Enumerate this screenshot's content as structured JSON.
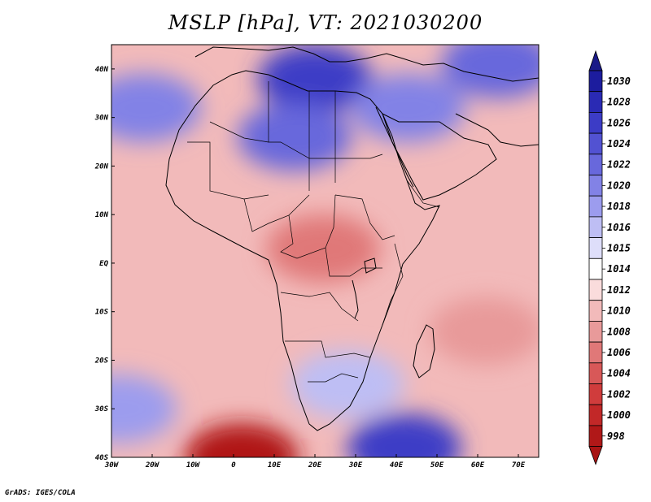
{
  "map": {
    "title": "MSLP [hPa], VT: 2021030200",
    "variable": "MSLP",
    "units": "hPa",
    "valid_time": "2021030200",
    "region": "Africa",
    "lon_range": [
      -30,
      75
    ],
    "lat_range": [
      -40,
      45
    ],
    "lon_ticks": [
      {
        "value": -30,
        "label": "30W"
      },
      {
        "value": -20,
        "label": "20W"
      },
      {
        "value": -10,
        "label": "10W"
      },
      {
        "value": 0,
        "label": "0"
      },
      {
        "value": 10,
        "label": "10E"
      },
      {
        "value": 20,
        "label": "20E"
      },
      {
        "value": 30,
        "label": "30E"
      },
      {
        "value": 40,
        "label": "40E"
      },
      {
        "value": 50,
        "label": "50E"
      },
      {
        "value": 60,
        "label": "60E"
      },
      {
        "value": 70,
        "label": "70E"
      }
    ],
    "lat_ticks": [
      {
        "value": 40,
        "label": "40N"
      },
      {
        "value": 30,
        "label": "30N"
      },
      {
        "value": 20,
        "label": "20N"
      },
      {
        "value": 10,
        "label": "10N"
      },
      {
        "value": 0,
        "label": "EQ"
      },
      {
        "value": -10,
        "label": "10S"
      },
      {
        "value": -20,
        "label": "20S"
      },
      {
        "value": -30,
        "label": "30S"
      },
      {
        "value": -40,
        "label": "40S"
      }
    ],
    "pressure_features": [
      {
        "name": "north-africa-high",
        "lon": 20,
        "lat": 38,
        "value": 1027
      },
      {
        "name": "mid-atlantic-high",
        "lon": -22,
        "lat": 32,
        "value": 1020
      },
      {
        "name": "sahara-high",
        "lon": 15,
        "lat": 26,
        "value": 1022
      },
      {
        "name": "arabia-high",
        "lon": 43,
        "lat": 32,
        "value": 1021
      },
      {
        "name": "asia-high",
        "lon": 65,
        "lat": 41,
        "value": 1023
      },
      {
        "name": "central-africa-low",
        "lon": 22,
        "lat": 3,
        "value": 1007
      },
      {
        "name": "indian-ocean-low",
        "lon": 62,
        "lat": -14,
        "value": 1008
      },
      {
        "name": "south-atlantic-low",
        "lon": 2,
        "lat": -40,
        "value": 998
      },
      {
        "name": "southern-indian-high",
        "lon": 42,
        "lat": -38,
        "value": 1027
      },
      {
        "name": "south-africa-high",
        "lon": 28,
        "lat": -25,
        "value": 1017
      },
      {
        "name": "south-atlantic-high",
        "lon": -28,
        "lat": -30,
        "value": 1018
      }
    ]
  },
  "colorbar": {
    "levels": [
      "1030",
      "1028",
      "1026",
      "1024",
      "1022",
      "1020",
      "1018",
      "1016",
      "1015",
      "1014",
      "1012",
      "1010",
      "1008",
      "1006",
      "1004",
      "1002",
      "1000",
      "998"
    ],
    "colors": [
      "#1c1c9e",
      "#2a2ab4",
      "#3c3cc6",
      "#5252d2",
      "#6868dc",
      "#8282e6",
      "#9c9cee",
      "#bebef4",
      "#dedefa",
      "#ffffff",
      "#fadcdc",
      "#f2baba",
      "#e89a9a",
      "#e07878",
      "#d85858",
      "#d03c3c",
      "#c22828",
      "#b01818"
    ],
    "top_color": "#1a1a88",
    "bottom_color": "#a81414"
  },
  "footer": {
    "credit": "GrADS: IGES/COLA"
  }
}
